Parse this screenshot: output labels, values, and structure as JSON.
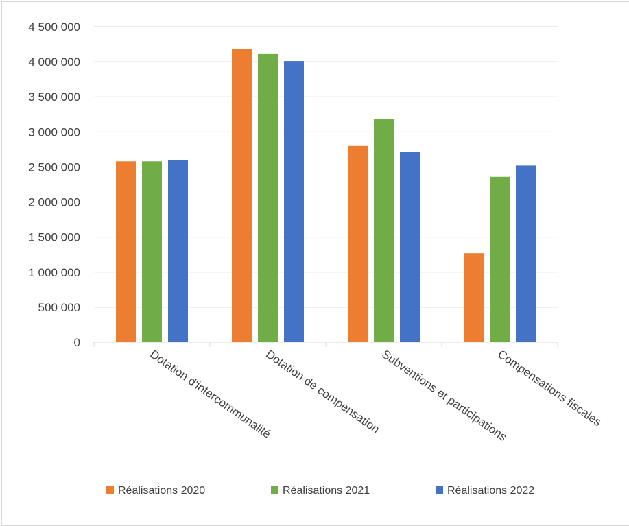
{
  "chart_data": {
    "type": "bar",
    "categories": [
      "Dotation d'intercommunalité",
      "Dotation de compensation",
      "Subventions et participations",
      "Compensations fiscales"
    ],
    "series": [
      {
        "name": "Réalisations 2020",
        "color": "#ED7D31",
        "values": [
          2580000,
          4180000,
          2800000,
          1270000
        ]
      },
      {
        "name": "Réalisations 2021",
        "color": "#70AD47",
        "values": [
          2580000,
          4110000,
          3180000,
          2360000
        ]
      },
      {
        "name": "Réalisations 2022",
        "color": "#4472C4",
        "values": [
          2600000,
          4010000,
          2710000,
          2520000
        ]
      }
    ],
    "ylim": [
      0,
      4500000
    ],
    "yticks": [
      {
        "value": 0,
        "label": "0"
      },
      {
        "value": 500000,
        "label": "500 000"
      },
      {
        "value": 1000000,
        "label": "1 000 000"
      },
      {
        "value": 1500000,
        "label": "1 500 000"
      },
      {
        "value": 2000000,
        "label": "2 000 000"
      },
      {
        "value": 2500000,
        "label": "2 500 000"
      },
      {
        "value": 3000000,
        "label": "3 000 000"
      },
      {
        "value": 3500000,
        "label": "3 500 000"
      },
      {
        "value": 4000000,
        "label": "4 000 000"
      },
      {
        "value": 4500000,
        "label": "4 500 000"
      }
    ],
    "grid": true,
    "legend_position": "bottom",
    "title": "",
    "xlabel": "",
    "ylabel": ""
  }
}
